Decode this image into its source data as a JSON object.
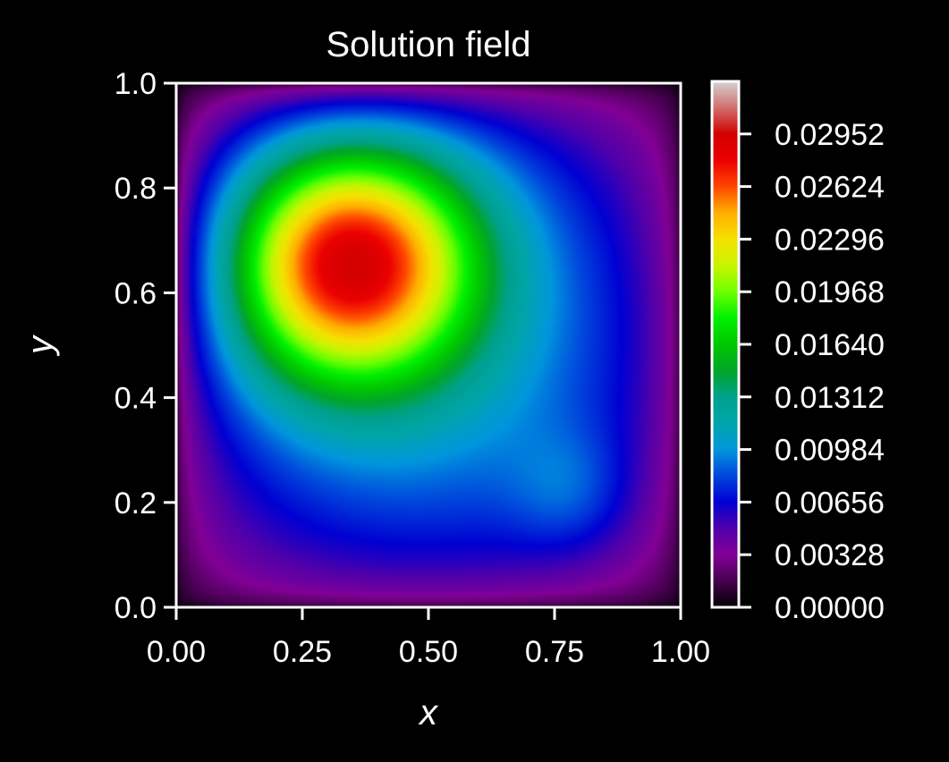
{
  "chart_data": {
    "type": "heatmap",
    "title": "Solution field",
    "xlabel": "x",
    "ylabel": "y",
    "xlim": [
      0,
      1
    ],
    "ylim": [
      0,
      1
    ],
    "x_ticks": [
      "0.00",
      "0.25",
      "0.50",
      "0.75",
      "1.00"
    ],
    "y_ticks": [
      "0.0",
      "0.2",
      "0.4",
      "0.6",
      "0.8",
      "1.0"
    ],
    "colorbar": {
      "min": 0.0,
      "max": 0.0328,
      "ticks": [
        "0.00000",
        "0.00328",
        "0.00656",
        "0.00984",
        "0.01312",
        "0.01640",
        "0.01968",
        "0.02296",
        "0.02624",
        "0.02952"
      ],
      "colormap": "nipy_spectral"
    },
    "field_features": {
      "peak": {
        "x": 0.32,
        "y": 0.68,
        "value": 0.0325
      },
      "secondary_bump": {
        "x": 0.79,
        "y": 0.21,
        "value": 0.0135
      },
      "boundary_value": 0.0
    }
  }
}
